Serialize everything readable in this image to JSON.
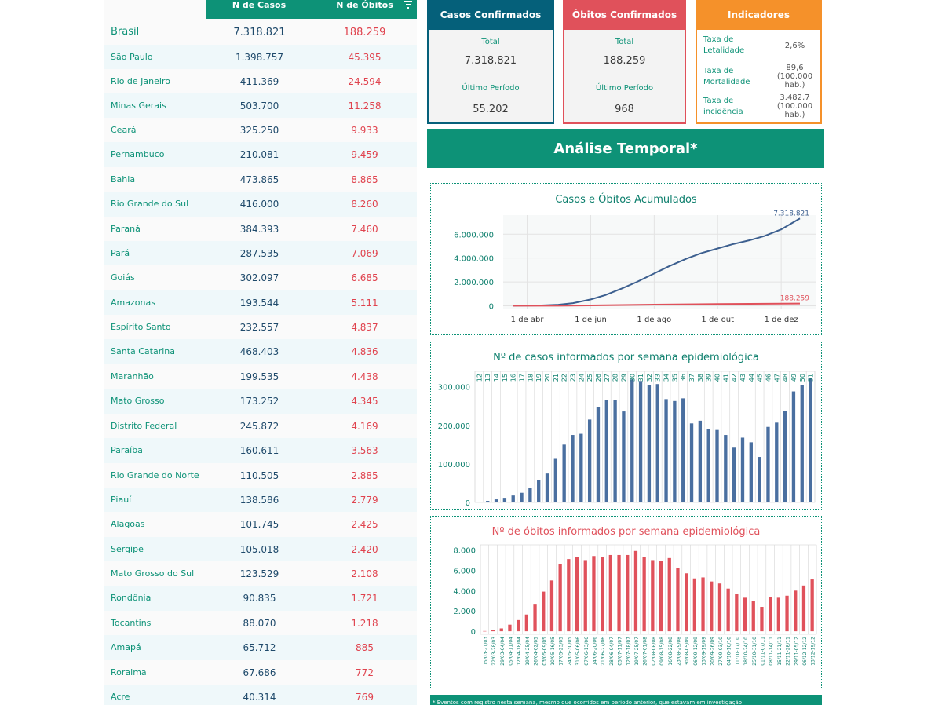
{
  "table": {
    "header_cases": "N de Casos",
    "header_deaths": "N de Óbitos",
    "rows": [
      {
        "name": "Brasil",
        "cases": "7.318.821",
        "deaths": "188.259"
      },
      {
        "name": "São Paulo",
        "cases": "1.398.757",
        "deaths": "45.395"
      },
      {
        "name": "Rio de Janeiro",
        "cases": "411.369",
        "deaths": "24.594"
      },
      {
        "name": "Minas Gerais",
        "cases": "503.700",
        "deaths": "11.258"
      },
      {
        "name": "Ceará",
        "cases": "325.250",
        "deaths": "9.933"
      },
      {
        "name": "Pernambuco",
        "cases": "210.081",
        "deaths": "9.459"
      },
      {
        "name": "Bahia",
        "cases": "473.865",
        "deaths": "8.865"
      },
      {
        "name": "Rio Grande do Sul",
        "cases": "416.000",
        "deaths": "8.260"
      },
      {
        "name": "Paraná",
        "cases": "384.393",
        "deaths": "7.460"
      },
      {
        "name": "Pará",
        "cases": "287.535",
        "deaths": "7.069"
      },
      {
        "name": "Goiás",
        "cases": "302.097",
        "deaths": "6.685"
      },
      {
        "name": "Amazonas",
        "cases": "193.544",
        "deaths": "5.111"
      },
      {
        "name": "Espírito Santo",
        "cases": "232.557",
        "deaths": "4.837"
      },
      {
        "name": "Santa Catarina",
        "cases": "468.403",
        "deaths": "4.836"
      },
      {
        "name": "Maranhão",
        "cases": "199.535",
        "deaths": "4.438"
      },
      {
        "name": "Mato Grosso",
        "cases": "173.252",
        "deaths": "4.345"
      },
      {
        "name": "Distrito Federal",
        "cases": "245.872",
        "deaths": "4.169"
      },
      {
        "name": "Paraíba",
        "cases": "160.611",
        "deaths": "3.563"
      },
      {
        "name": "Rio Grande do Norte",
        "cases": "110.505",
        "deaths": "2.885"
      },
      {
        "name": "Piauí",
        "cases": "138.586",
        "deaths": "2.779"
      },
      {
        "name": "Alagoas",
        "cases": "101.745",
        "deaths": "2.425"
      },
      {
        "name": "Sergipe",
        "cases": "105.018",
        "deaths": "2.420"
      },
      {
        "name": "Mato Grosso do Sul",
        "cases": "123.529",
        "deaths": "2.108"
      },
      {
        "name": "Rondônia",
        "cases": "90.835",
        "deaths": "1.721"
      },
      {
        "name": "Tocantins",
        "cases": "88.070",
        "deaths": "1.218"
      },
      {
        "name": "Amapá",
        "cases": "65.712",
        "deaths": "885"
      },
      {
        "name": "Roraima",
        "cases": "67.686",
        "deaths": "772"
      },
      {
        "name": "Acre",
        "cases": "40.314",
        "deaths": "769"
      }
    ]
  },
  "cards": {
    "cases": {
      "title": "Casos Confirmados",
      "total_label": "Total",
      "total": "7.318.821",
      "period_label": "Último Período",
      "period": "55.202"
    },
    "deaths": {
      "title": "Óbitos Confirmados",
      "total_label": "Total",
      "total": "188.259",
      "period_label": "Último Período",
      "period": "968"
    },
    "indicators": {
      "title": "Indicadores",
      "items": [
        {
          "label": "Taxa de Letalidade",
          "value": "2,6%"
        },
        {
          "label": "Taxa de Mortalidade",
          "value": "89,6 (100.000 hab.)"
        },
        {
          "label": "Taxa de incidência",
          "value": "3.482,7 (100.000 hab.)"
        }
      ]
    }
  },
  "banner": {
    "title": "Análise Temporal*"
  },
  "colors": {
    "teal": "#0d9277",
    "cases_blue": "#4a6fa0",
    "deaths_red": "#e0515b",
    "orange": "#f5912a",
    "navy": "#05607a"
  },
  "footer": {
    "note": "* Eventos com registro nesta semana, mesmo que ocorridos em período anterior, que estavam em investigação"
  },
  "chart_data": [
    {
      "type": "line",
      "title": "Casos e Óbitos Acumulados",
      "x_ticks": [
        "1 de abr",
        "1 de jun",
        "1 de ago",
        "1 de out",
        "1 de dez"
      ],
      "y_ticks": [
        "0",
        "2.000.000",
        "4.000.000",
        "6.000.000"
      ],
      "ylim": [
        -300000,
        7600000
      ],
      "x_range": [
        "2020-03-18",
        "2020-12-19"
      ],
      "series": [
        {
          "color": "#3c5f8f",
          "end_label": "7.318.821",
          "points": [
            [
              "2020-03-18",
              0
            ],
            [
              "2020-04-15",
              28000
            ],
            [
              "2020-05-01",
              90000
            ],
            [
              "2020-05-15",
              220000
            ],
            [
              "2020-06-01",
              530000
            ],
            [
              "2020-06-15",
              890000
            ],
            [
              "2020-07-01",
              1450000
            ],
            [
              "2020-07-15",
              1980000
            ],
            [
              "2020-08-01",
              2700000
            ],
            [
              "2020-08-15",
              3300000
            ],
            [
              "2020-09-01",
              3950000
            ],
            [
              "2020-09-15",
              4400000
            ],
            [
              "2020-10-01",
              4800000
            ],
            [
              "2020-10-15",
              5150000
            ],
            [
              "2020-11-01",
              5500000
            ],
            [
              "2020-11-15",
              5850000
            ],
            [
              "2020-12-01",
              6400000
            ],
            [
              "2020-12-19",
              7318821
            ]
          ]
        },
        {
          "color": "#e0515b",
          "end_label": "188.259",
          "points": [
            [
              "2020-03-18",
              0
            ],
            [
              "2020-05-01",
              6000
            ],
            [
              "2020-06-01",
              30000
            ],
            [
              "2020-07-01",
              60000
            ],
            [
              "2020-08-01",
              93000
            ],
            [
              "2020-09-01",
              122000
            ],
            [
              "2020-10-01",
              144000
            ],
            [
              "2020-11-01",
              160000
            ],
            [
              "2020-12-01",
              174000
            ],
            [
              "2020-12-19",
              188259
            ]
          ]
        }
      ]
    },
    {
      "type": "bar",
      "title": "Nº de casos informados por semana epidemiológica",
      "categories": [
        "12",
        "13",
        "14",
        "15",
        "16",
        "17",
        "18",
        "19",
        "20",
        "21",
        "22",
        "23",
        "24",
        "25",
        "26",
        "27",
        "28",
        "29",
        "30",
        "31",
        "32",
        "33",
        "34",
        "35",
        "36",
        "37",
        "38",
        "39",
        "40",
        "41",
        "42",
        "43",
        "44",
        "45",
        "46",
        "47",
        "48",
        "49",
        "50",
        "51"
      ],
      "values": [
        1500,
        4000,
        8000,
        12000,
        18000,
        25000,
        37000,
        57000,
        75000,
        113000,
        150000,
        175000,
        178000,
        215000,
        247000,
        265000,
        265000,
        236000,
        319000,
        315000,
        305000,
        307000,
        268000,
        263000,
        270000,
        205000,
        212000,
        190000,
        188000,
        175000,
        142000,
        168000,
        156000,
        118000,
        196000,
        207000,
        238000,
        288000,
        305000,
        322000
      ],
      "y_ticks": [
        "0",
        "100.000",
        "200.000",
        "300.000"
      ],
      "ylim": [
        0,
        340000
      ],
      "color": "#4a6fa0"
    },
    {
      "type": "bar",
      "title": "Nº de óbitos informados por semana epidemiológica",
      "categories": [
        "15/03-21/03",
        "22/03-28/03",
        "29/03-04/04",
        "05/04-11/04",
        "12/04-18/04",
        "19/04-25/04",
        "26/04-02/05",
        "03/05-09/05",
        "10/05-16/05",
        "17/05-23/05",
        "24/05-30/05",
        "31/05-06/06",
        "07/06-13/06",
        "14/06-20/06",
        "21/06-27/06",
        "28/06-04/07",
        "05/07-11/07",
        "12/07-18/07",
        "19/07-25/07",
        "26/07-01/08",
        "02/08-08/08",
        "09/08-15/08",
        "16/08-22/08",
        "23/08-29/08",
        "30/08-05/09",
        "06/09-12/09",
        "13/09-19/09",
        "20/09-26/09",
        "27/09-03/10",
        "04/10-10/10",
        "11/10-17/10",
        "18/10-24/10",
        "25/10-31/10",
        "01/11-07/11",
        "08/11-14/11",
        "15/11-21/11",
        "22/11-28/11",
        "29/11-05/12",
        "06/12-12/12",
        "13/12-19/12"
      ],
      "values": [
        20,
        90,
        280,
        650,
        1100,
        1650,
        2700,
        3900,
        5000,
        6600,
        7100,
        7300,
        7000,
        7400,
        7300,
        7500,
        7500,
        7500,
        7900,
        7300,
        7000,
        6900,
        7200,
        6200,
        5700,
        5200,
        5300,
        4900,
        4700,
        4200,
        3700,
        3300,
        3000,
        2400,
        3400,
        3300,
        3500,
        4000,
        4500,
        5100
      ],
      "y_ticks": [
        "0",
        "2.000",
        "4.000",
        "6.000",
        "8.000"
      ],
      "ylim": [
        -300,
        8500
      ],
      "color": "#e0515b"
    }
  ]
}
